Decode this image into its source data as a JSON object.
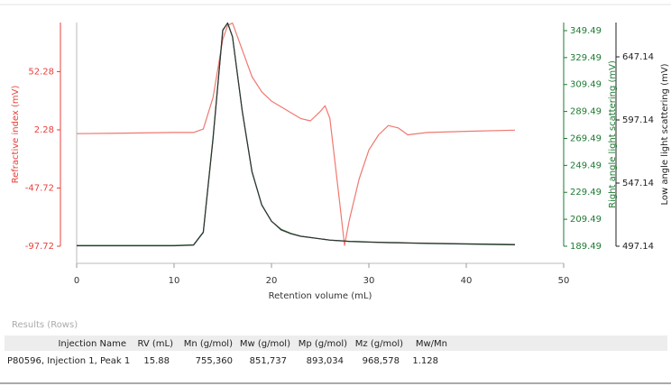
{
  "chart_data": {
    "type": "line",
    "xlabel": "Retention volume (mL)",
    "ylabel": "Refractive index (mV)",
    "y2label": "Right angle light scattering (mV)",
    "y3label": "Low angle light scattering (mV)",
    "xlim": [
      0,
      50
    ],
    "xticks": [
      0,
      10,
      20,
      30,
      40,
      50
    ],
    "ylim": [
      -97.72,
      94.5
    ],
    "yticks": [
      -97.72,
      -47.72,
      2.28,
      52.28
    ],
    "ycolor": "#e8413c",
    "y2lim": [
      189.49,
      355.5
    ],
    "y2ticks": [
      189.49,
      209.49,
      229.49,
      249.49,
      269.49,
      289.49,
      309.49,
      329.49,
      349.49
    ],
    "y2color": "#1e7a32",
    "y3lim": [
      497.14,
      674.3
    ],
    "y3ticks": [
      497.14,
      547.14,
      597.14,
      647.14
    ],
    "y3color": "#222222",
    "x": [
      0,
      5,
      10,
      12,
      13,
      14,
      15,
      15.5,
      16,
      17,
      18,
      19,
      20,
      21,
      22,
      23,
      24,
      25,
      25.5,
      26,
      27,
      27.5,
      28,
      29,
      30,
      31,
      32,
      33,
      34,
      36,
      40,
      45
    ],
    "series": [
      {
        "color": "#f07870",
        "axis": "y",
        "values": [
          -1,
          -0.5,
          0,
          0,
          3,
          30,
          80,
          92,
          94,
          71,
          48,
          35,
          27,
          22,
          17,
          12,
          10,
          18,
          23,
          12,
          -60,
          -97,
          -75,
          -40,
          -15,
          -2,
          6,
          4,
          -2,
          0,
          1,
          2
        ]
      },
      {
        "color": "#1e7a32",
        "axis": "y2",
        "values": [
          190,
          190,
          190,
          190.5,
          200,
          270,
          350,
          355,
          345,
          290,
          245,
          220,
          208,
          202,
          199,
          197,
          196,
          195,
          194.5,
          194,
          193.5,
          193.3,
          193,
          192.8,
          192.5,
          192.3,
          192.1,
          192,
          191.8,
          191.5,
          191,
          190.5
        ]
      },
      {
        "color": "#333333",
        "axis": "y3",
        "values": [
          497.5,
          497.5,
          497.5,
          498,
          508,
          582,
          668,
          674,
          663,
          604,
          556,
          530,
          517,
          510,
          507,
          505,
          504,
          503,
          502.5,
          502,
          501.5,
          501.3,
          501,
          500.8,
          500.5,
          500.3,
          500.1,
          500,
          499.8,
          499.5,
          499,
          498.5
        ]
      }
    ]
  },
  "results": {
    "label": "Results (Rows)",
    "columns": [
      "Injection Name",
      "RV (mL)",
      "Mn (g/mol)",
      "Mw (g/mol)",
      "Mp (g/mol)",
      "Mz (g/mol)",
      "Mw/Mn"
    ],
    "rows": [
      [
        "P80596, Injection 1, Peak 1",
        "15.88",
        "755,360",
        "851,737",
        "893,034",
        "968,578",
        "1.128"
      ]
    ]
  }
}
